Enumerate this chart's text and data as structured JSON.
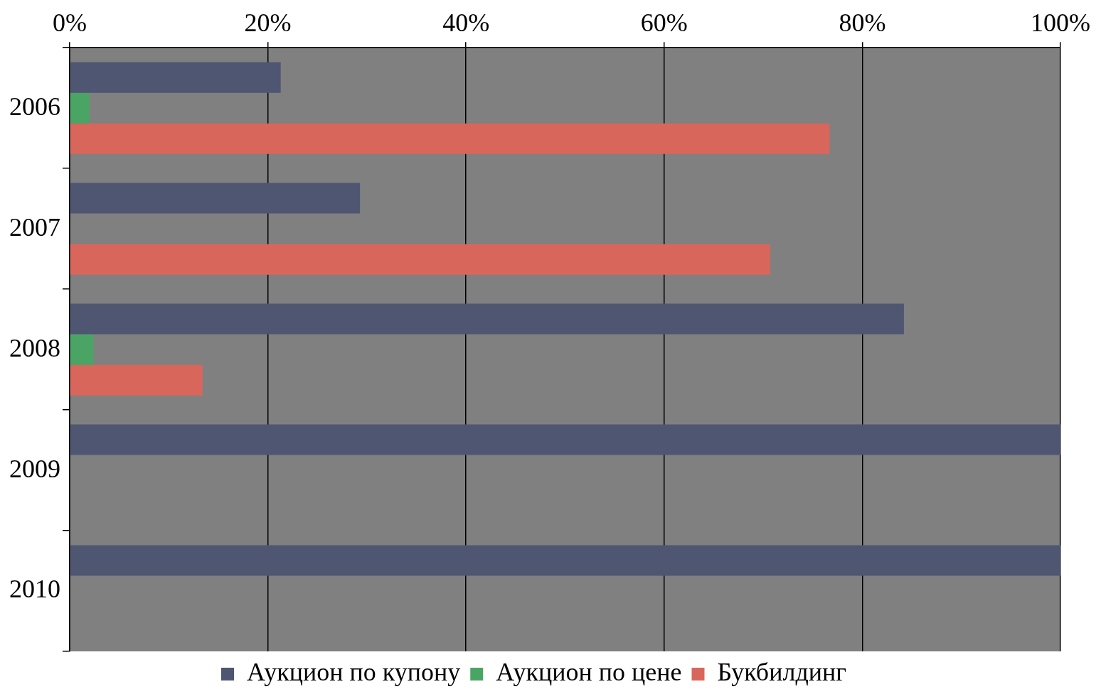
{
  "chart_data": {
    "type": "bar",
    "orientation": "horizontal",
    "categories": [
      "2006",
      "2007",
      "2008",
      "2009",
      "2010"
    ],
    "series": [
      {
        "name": "Аукцион по купону",
        "color": "#4f5672",
        "values": [
          21.3,
          29.3,
          84.2,
          100,
          100
        ]
      },
      {
        "name": "Аукцион по цене",
        "color": "#4aa564",
        "values": [
          2,
          0,
          2.4,
          0,
          0
        ]
      },
      {
        "name": "Букбилдинг",
        "color": "#d9665b",
        "values": [
          76.7,
          70.7,
          13.4,
          0,
          0
        ]
      }
    ],
    "xlim": [
      0,
      100
    ],
    "xticks": [
      {
        "value": 0,
        "label": "0%"
      },
      {
        "value": 20,
        "label": "20%"
      },
      {
        "value": 40,
        "label": "40%"
      },
      {
        "value": 60,
        "label": "60%"
      },
      {
        "value": 80,
        "label": "80%"
      },
      {
        "value": 100,
        "label": "100%"
      }
    ],
    "grid": "x",
    "legend": "bottom"
  }
}
